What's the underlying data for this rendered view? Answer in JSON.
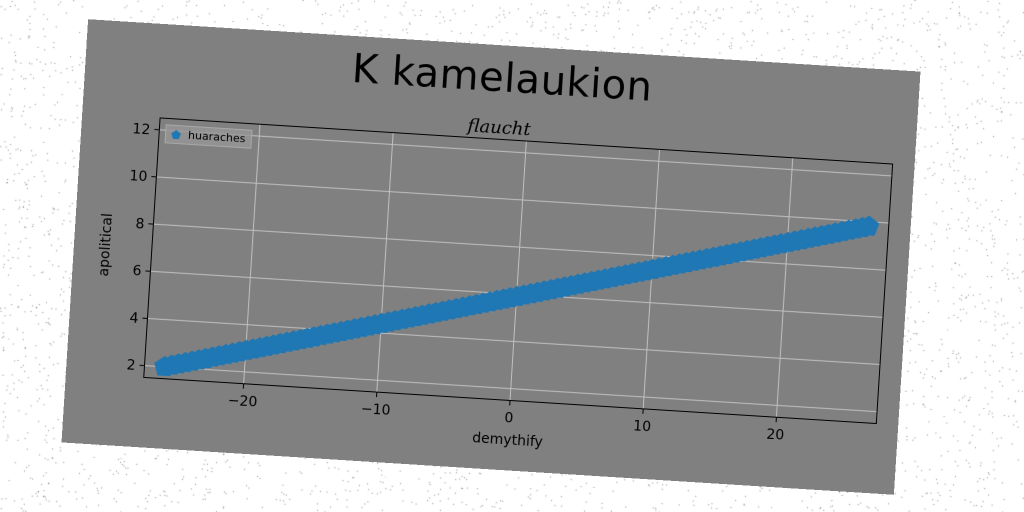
{
  "chart_data": {
    "type": "scatter",
    "title": "K kamelaukion",
    "subtitle": "flaucht",
    "xlabel": "demythify",
    "ylabel": "apolitical",
    "xlim": [
      -27.5,
      27.5
    ],
    "ylim": [
      1.5,
      12.5
    ],
    "xticks": [
      -20,
      -10,
      0,
      10,
      20
    ],
    "yticks": [
      2,
      4,
      6,
      8,
      10,
      12
    ],
    "grid": true,
    "legend_position": "top-left",
    "series": [
      {
        "name": "huaraches",
        "color": "#1f77b4",
        "marker": "pentagon",
        "x_start": -26,
        "x_end": 26,
        "x_step": 0.5,
        "slope": 0.15,
        "intercept": 5.9
      }
    ]
  }
}
